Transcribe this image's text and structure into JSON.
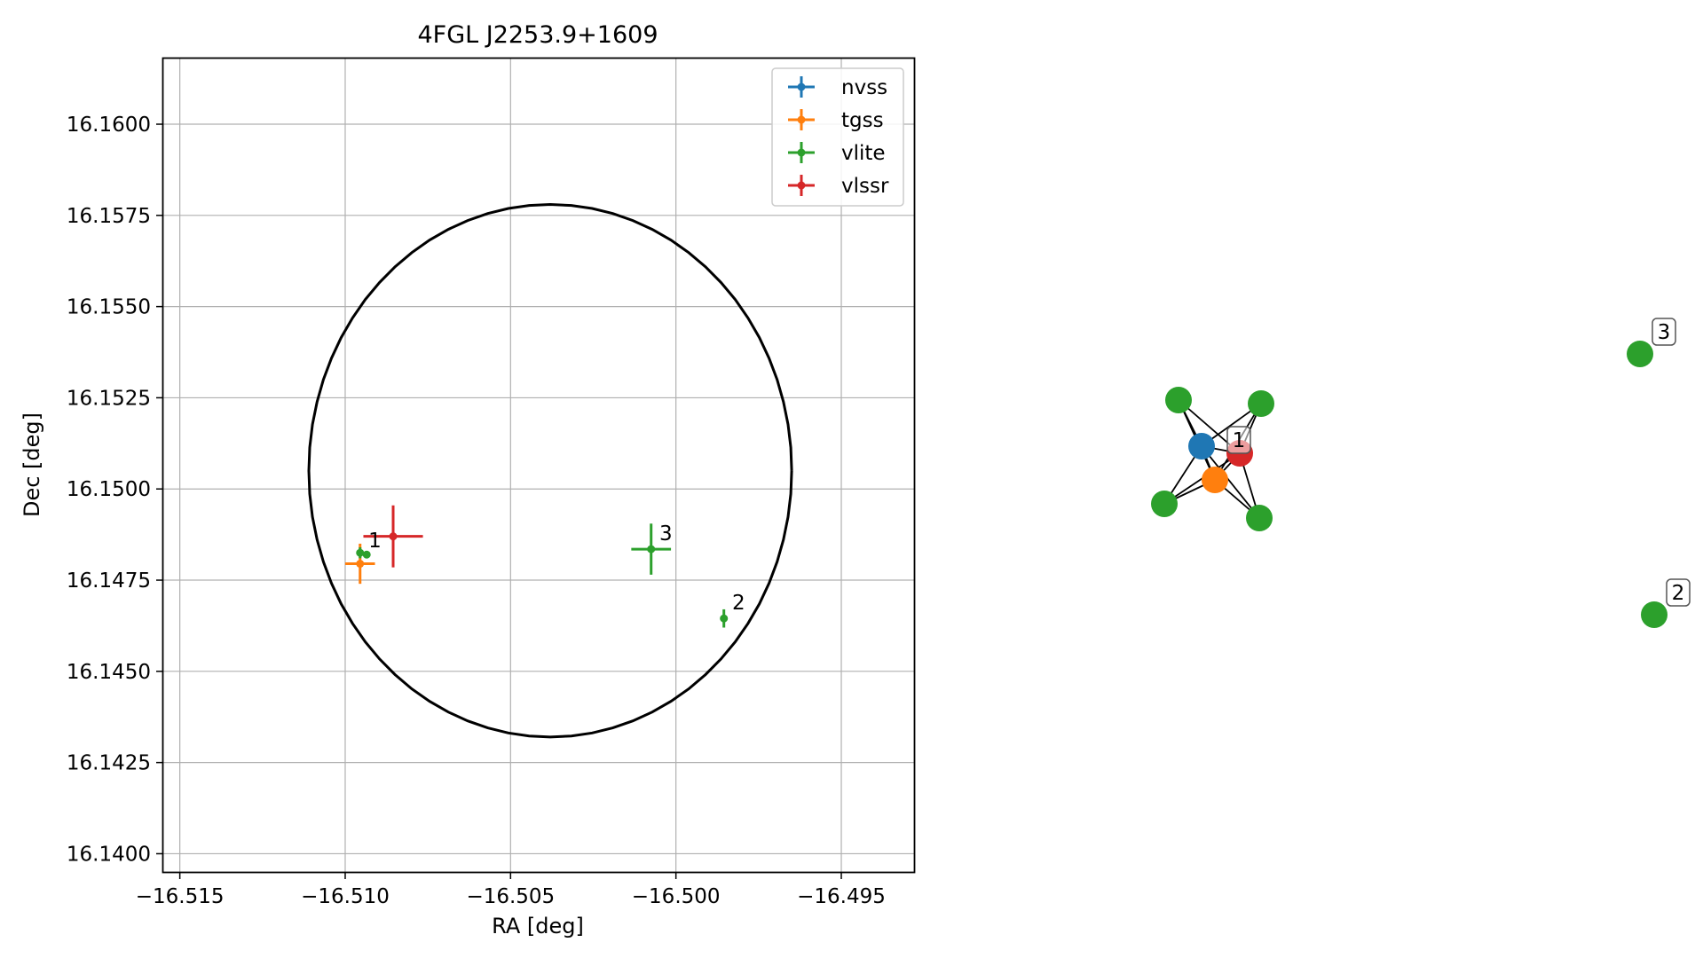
{
  "chart_data": [
    {
      "type": "scatter",
      "title": "4FGL J2253.9+1609",
      "xlabel": "RA [deg]",
      "ylabel": "Dec [deg]",
      "xlim": [
        -16.5155,
        -16.4928
      ],
      "ylim": [
        16.1395,
        16.1618
      ],
      "xticks": [
        -16.515,
        -16.51,
        -16.505,
        -16.5,
        -16.495
      ],
      "xtick_labels": [
        "−16.515",
        "−16.510",
        "−16.505",
        "−16.500",
        "−16.495"
      ],
      "yticks": [
        16.14,
        16.1425,
        16.145,
        16.1475,
        16.15,
        16.1525,
        16.155,
        16.1575,
        16.16
      ],
      "ytick_labels": [
        "16.1400",
        "16.1425",
        "16.1450",
        "16.1475",
        "16.1500",
        "16.1525",
        "16.1550",
        "16.1575",
        "16.1600"
      ],
      "grid": true,
      "legend_position": "top-right",
      "circle": {
        "center": [
          -16.5038,
          16.1505
        ],
        "radius": 0.0073
      },
      "series": [
        {
          "name": "nvss",
          "color": "#1f77b4",
          "points": []
        },
        {
          "name": "tgss",
          "color": "#ff7f0e",
          "points": [
            {
              "x": -16.50955,
              "y": 16.14795,
              "xerr": 0.00045,
              "yerr": 0.00055
            }
          ]
        },
        {
          "name": "vlite",
          "color": "#2ca02c",
          "points": [
            {
              "x": -16.50955,
              "y": 16.14825,
              "xerr": 0.0001,
              "yerr": 0.00015
            },
            {
              "x": -16.50935,
              "y": 16.1482,
              "xerr": 0.0001,
              "yerr": 0.0001
            },
            {
              "x": -16.50075,
              "y": 16.14835,
              "xerr": 0.0006,
              "yerr": 0.0007
            },
            {
              "x": -16.49855,
              "y": 16.14645,
              "xerr": 0.0001,
              "yerr": 0.00025
            }
          ]
        },
        {
          "name": "vlssr",
          "color": "#d62728",
          "points": [
            {
              "x": -16.50855,
              "y": 16.1487,
              "xerr": 0.0009,
              "yerr": 0.00085
            }
          ]
        }
      ],
      "annotations": [
        {
          "text": "1",
          "x": -16.5093,
          "y": 16.1484
        },
        {
          "text": "3",
          "x": -16.5005,
          "y": 16.1486
        },
        {
          "text": "2",
          "x": -16.4983,
          "y": 16.1467
        }
      ]
    },
    {
      "type": "network",
      "nodes": [
        {
          "id": "nvss",
          "color": "#1f77b4"
        },
        {
          "id": "tgss",
          "color": "#ff7f0e"
        },
        {
          "id": "vlssr",
          "color": "#d62728"
        },
        {
          "id": "vlite-a",
          "color": "#2ca02c"
        },
        {
          "id": "vlite-b",
          "color": "#2ca02c"
        },
        {
          "id": "vlite-c",
          "color": "#2ca02c"
        },
        {
          "id": "vlite-d",
          "color": "#2ca02c"
        },
        {
          "id": "vlite-3",
          "color": "#2ca02c"
        },
        {
          "id": "vlite-2",
          "color": "#2ca02c"
        }
      ],
      "edges": [
        [
          "vlite-a",
          "nvss"
        ],
        [
          "vlite-a",
          "vlssr"
        ],
        [
          "vlite-a",
          "tgss"
        ],
        [
          "vlite-b",
          "nvss"
        ],
        [
          "vlite-b",
          "vlssr"
        ],
        [
          "vlite-b",
          "tgss"
        ],
        [
          "vlite-c",
          "nvss"
        ],
        [
          "vlite-c",
          "vlssr"
        ],
        [
          "vlite-c",
          "tgss"
        ],
        [
          "vlite-d",
          "nvss"
        ],
        [
          "vlite-d",
          "vlssr"
        ],
        [
          "vlite-d",
          "tgss"
        ],
        [
          "nvss",
          "vlssr"
        ],
        [
          "nvss",
          "tgss"
        ],
        [
          "tgss",
          "vlssr"
        ]
      ],
      "labels": [
        {
          "text": "1",
          "node": "vlssr"
        },
        {
          "text": "3",
          "node": "vlite-3"
        },
        {
          "text": "2",
          "node": "vlite-2"
        }
      ]
    }
  ]
}
